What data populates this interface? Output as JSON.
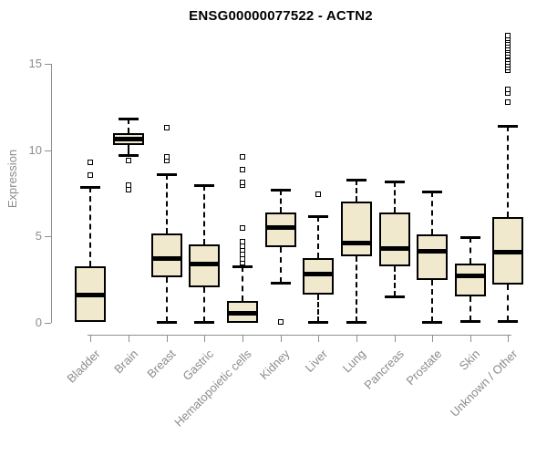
{
  "title": "ENSG00000077522 - ACTN2",
  "colors": {
    "title": "#000000",
    "axis_line": "#8e8e8e",
    "tick_label": "#8c8c8c",
    "box_fill": "#f0e9ce",
    "box_border": "#000000"
  },
  "chart_data": {
    "type": "boxplot",
    "title": "ENSG00000077522 - ACTN2",
    "xlabel": "",
    "ylabel": "Expression",
    "ylim": [
      0,
      15
    ],
    "y_ticks": [
      0,
      5,
      10,
      15
    ],
    "grid": false,
    "legend": false,
    "categories": [
      "Bladder",
      "Brain",
      "Breast",
      "Gastric",
      "Hematopoietic cells",
      "Kidney",
      "Liver",
      "Lung",
      "Pancreas",
      "Prostate",
      "Skin",
      "Unknown / Other"
    ],
    "series": [
      {
        "name": "Bladder",
        "whisker_low": 0.05,
        "q1": 0.05,
        "median": 1.6,
        "q3": 3.3,
        "whisker_high": 7.85,
        "outliers": [
          8.55,
          9.3
        ]
      },
      {
        "name": "Brain",
        "whisker_low": 9.7,
        "q1": 10.3,
        "median": 10.65,
        "q3": 11.0,
        "whisker_high": 11.85,
        "outliers": [
          9.4,
          7.95,
          7.7
        ]
      },
      {
        "name": "Breast",
        "whisker_low": 0.05,
        "q1": 2.65,
        "median": 3.7,
        "q3": 5.2,
        "whisker_high": 8.6,
        "outliers": [
          9.4,
          9.6,
          11.3
        ]
      },
      {
        "name": "Gastric",
        "whisker_low": 0.05,
        "q1": 2.05,
        "median": 3.4,
        "q3": 4.55,
        "whisker_high": 7.95,
        "outliers": []
      },
      {
        "name": "Hematopoietic cells",
        "whisker_low": 0.0,
        "q1": 0.0,
        "median": 0.55,
        "q3": 1.25,
        "whisker_high": 3.3,
        "outliers": [
          3.5,
          3.7,
          3.95,
          4.25,
          4.45,
          4.7,
          5.5,
          7.95,
          8.15,
          8.85,
          9.6
        ]
      },
      {
        "name": "Kidney",
        "whisker_low": 2.3,
        "q1": 4.4,
        "median": 5.5,
        "q3": 6.4,
        "whisker_high": 7.7,
        "outliers": [
          0.05
        ]
      },
      {
        "name": "Liver",
        "whisker_low": 0.05,
        "q1": 1.65,
        "median": 2.8,
        "q3": 3.75,
        "whisker_high": 6.2,
        "outliers": [
          7.45
        ]
      },
      {
        "name": "Lung",
        "whisker_low": 0.05,
        "q1": 3.85,
        "median": 4.6,
        "q3": 7.0,
        "whisker_high": 8.3,
        "outliers": []
      },
      {
        "name": "Pancreas",
        "whisker_low": 1.55,
        "q1": 3.3,
        "median": 4.3,
        "q3": 6.4,
        "whisker_high": 8.2,
        "outliers": []
      },
      {
        "name": "Prostate",
        "whisker_low": 0.05,
        "q1": 2.5,
        "median": 4.15,
        "q3": 5.1,
        "whisker_high": 7.6,
        "outliers": []
      },
      {
        "name": "Skin",
        "whisker_low": 0.1,
        "q1": 1.55,
        "median": 2.7,
        "q3": 3.45,
        "whisker_high": 4.95,
        "outliers": []
      },
      {
        "name": "Unknown / Other",
        "whisker_low": 0.1,
        "q1": 2.2,
        "median": 4.1,
        "q3": 6.15,
        "whisker_high": 11.4,
        "outliers": [
          12.8,
          13.3,
          13.5,
          14.65,
          14.8,
          14.95,
          15.1,
          15.25,
          15.4,
          15.5,
          15.65,
          15.8,
          15.9,
          16.05,
          16.2,
          16.35,
          16.5,
          16.65
        ]
      }
    ]
  }
}
